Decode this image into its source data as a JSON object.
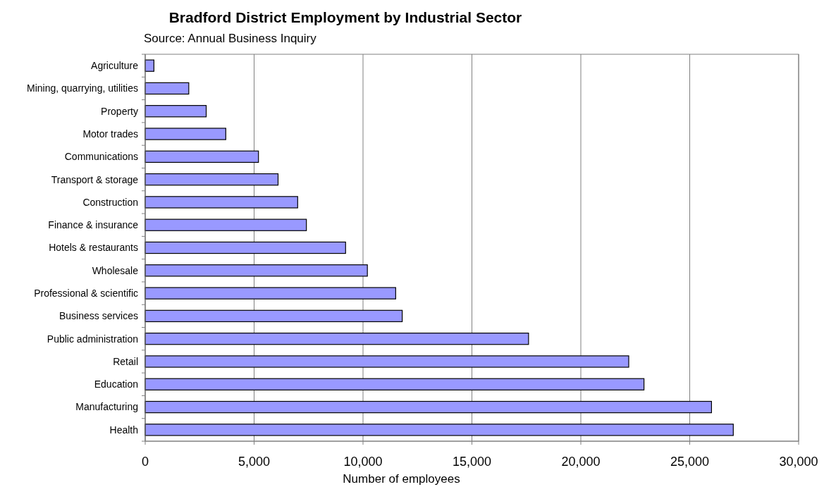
{
  "chart_data": {
    "type": "bar",
    "orientation": "horizontal",
    "title": "Bradford District Employment by Industrial Sector",
    "subtitle": "Source: Annual Business Inquiry",
    "xlabel": "Number of employees",
    "categories": [
      "Agriculture",
      "Mining, quarrying, utilities",
      "Property",
      "Motor trades",
      "Communications",
      "Transport & storage",
      "Construction",
      "Finance & insurance",
      "Hotels & restaurants",
      "Wholesale",
      "Professional & scientific",
      "Business services",
      "Public administration",
      "Retail",
      "Education",
      "Manufacturing",
      "Health"
    ],
    "values": [
      400,
      2000,
      2800,
      3700,
      5200,
      6100,
      7000,
      7400,
      9200,
      10200,
      11500,
      11800,
      17600,
      22200,
      22900,
      26000,
      27000
    ],
    "color": "#9999ff",
    "xlim": [
      0,
      30000
    ],
    "xticks": [
      0,
      {
        "value": 5000,
        "label": "5,000"
      },
      {
        "value": 10000,
        "label": "10,000"
      },
      {
        "value": 15000,
        "label": "15,000"
      },
      {
        "value": 20000,
        "label": "20,000"
      },
      {
        "value": 25000,
        "label": "25,000"
      },
      {
        "value": 30000,
        "label": "30,000"
      }
    ],
    "grid": "x"
  }
}
